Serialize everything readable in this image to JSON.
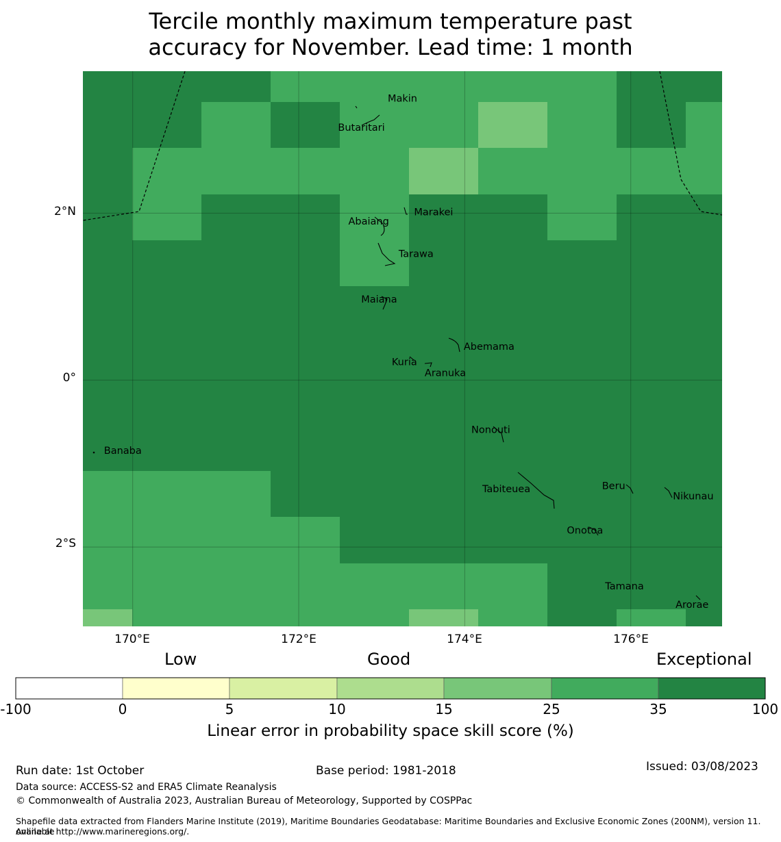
{
  "title_line1": "Tercile monthly maximum temperature past",
  "title_line2": "accuracy for November. Lead time: 1 month",
  "map": {
    "lon_range": [
      169.4,
      177.1
    ],
    "lat_range": [
      -2.95,
      3.7
    ],
    "lat_ticks": [
      {
        "value": 2,
        "label": "2°N"
      },
      {
        "value": 0,
        "label": "0°"
      },
      {
        "value": -2,
        "label": "2°S"
      }
    ],
    "lon_ticks": [
      {
        "value": 170,
        "label": "170°E"
      },
      {
        "value": 172,
        "label": "172°E"
      },
      {
        "value": 174,
        "label": "174°E"
      },
      {
        "value": 176,
        "label": "176°E"
      }
    ],
    "colors": {
      "dark": "#238443",
      "mid": "#41ab5d",
      "light": "#78c679"
    },
    "islands": [
      {
        "name": "Makin",
        "lon": 172.99,
        "lat": 3.36
      },
      {
        "name": "Butaritari",
        "lon": 172.78,
        "lat": 3.07
      },
      {
        "name": "Marakei",
        "lon": 173.29,
        "lat": 2.0
      },
      {
        "name": "Abaiang",
        "lon": 172.95,
        "lat": 1.84
      },
      {
        "name": "Tarawa",
        "lon": 173.03,
        "lat": 1.45
      },
      {
        "name": "Maiana",
        "lon": 173.0,
        "lat": 0.93
      },
      {
        "name": "Abemama",
        "lon": 173.88,
        "lat": 0.41
      },
      {
        "name": "Kuria",
        "lon": 173.41,
        "lat": 0.21
      },
      {
        "name": "Aranuka",
        "lon": 173.6,
        "lat": 0.16
      },
      {
        "name": "Nonouti",
        "lon": 174.41,
        "lat": -0.65
      },
      {
        "name": "Banaba",
        "lon": 169.53,
        "lat": -0.86
      },
      {
        "name": "Tabiteuea",
        "lon": 174.83,
        "lat": -1.4
      },
      {
        "name": "Beru",
        "lon": 176.0,
        "lat": -1.33
      },
      {
        "name": "Nikunau",
        "lon": 176.45,
        "lat": -1.37
      },
      {
        "name": "Onotoa",
        "lon": 175.56,
        "lat": -1.84
      },
      {
        "name": "Tamana",
        "lon": 175.98,
        "lat": -2.5
      },
      {
        "name": "Arorae",
        "lon": 176.82,
        "lat": -2.64
      }
    ]
  },
  "legend": {
    "word_low": "Low",
    "word_good": "Good",
    "word_exceptional": "Exceptional",
    "bins": [
      {
        "from": "-100",
        "to": "0",
        "color": "#ffffff"
      },
      {
        "from": "0",
        "to": "5",
        "color": "#ffffcc"
      },
      {
        "from": "5",
        "to": "10",
        "color": "#d9f0a3"
      },
      {
        "from": "10",
        "to": "15",
        "color": "#addd8e"
      },
      {
        "from": "15",
        "to": "25",
        "color": "#78c679"
      },
      {
        "from": "25",
        "to": "35",
        "color": "#41ab5d"
      },
      {
        "from": "35",
        "to": "100",
        "color": "#238443"
      }
    ],
    "tick_labels": [
      "-100",
      "0",
      "5",
      "10",
      "15",
      "25",
      "35",
      "100"
    ],
    "label": "Linear error in probability space skill score (%)"
  },
  "footer": {
    "run_date": "Run date: 1st October",
    "base_period": "Base period: 1981-2018",
    "issued": "Issued: 03/08/2023",
    "data_source": "Data source: ACCESS-S2 and ERA5 Climate Reanalysis",
    "copyright": "© Commonwealth of Australia 2023, Australian Bureau of Meteorology, Supported by COSPPac",
    "shapefile_line1": "Shapefile data extracted from Flanders Marine Institute (2019), Maritime Boundaries Geodatabase: Maritime Boundaries and Exclusive Economic Zones (200NM), version 11. Available",
    "shapefile_line2": "online at http://www.marineregions.org/."
  }
}
